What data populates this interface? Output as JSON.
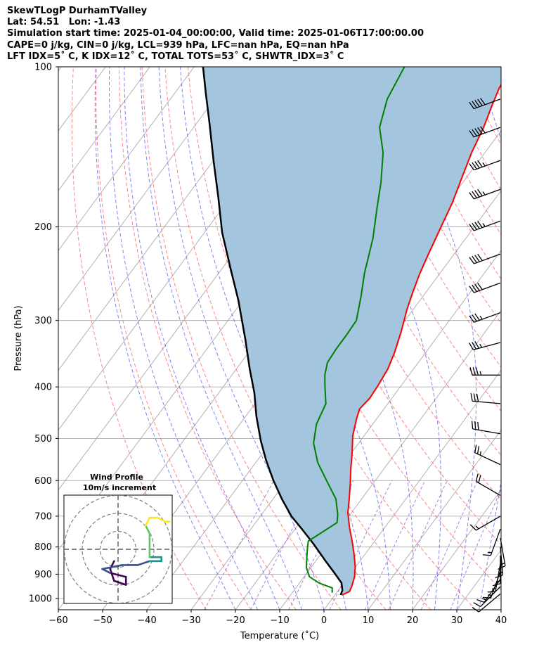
{
  "header": {
    "line1": "SkewTLogP DurhamTValley",
    "line2": "Lat: 54.51   Lon: -1.43",
    "line3": "Simulation start time: 2025-01-04_00:00:00, Valid time: 2025-01-06T17:00:00.00",
    "line4": "CAPE=0 j/kg, CIN=0 j/kg, LCL=939 hPa, LFC=nan hPa, EQ=nan hPa",
    "line5": "LFT IDX=5˚ C, K IDX=12˚ C, TOTAL TOTS=53˚ C, SHWTR_IDX=3˚ C"
  },
  "chart_data": {
    "type": "line",
    "title": "SkewTLogP DurhamTValley",
    "xlabel": "Temperature (˚C)",
    "ylabel": "Pressure (hPa)",
    "xlim": [
      -60,
      40
    ],
    "ylim": [
      1050,
      100
    ],
    "x_ticks": [
      "−60",
      "−50",
      "−40",
      "−30",
      "−20",
      "−10",
      "0",
      "10",
      "20",
      "30",
      "40"
    ],
    "y_ticks": [
      "100",
      "200",
      "300",
      "400",
      "500",
      "600",
      "700",
      "800",
      "900",
      "1000"
    ],
    "y_scale": "log",
    "grid": true,
    "colors": {
      "temperature": "#ff0000",
      "dewpoint": "#008000",
      "parcel": "#000000",
      "cape_fill": "#a3c5de",
      "dry_adiabat": "#ff6666",
      "moist_adiabat": "#6666ee",
      "mixing_ratio": "#9a5fd6",
      "isotherm": "#a0a0a0"
    },
    "series": [
      {
        "name": "temperature",
        "points": [
          [
            1.6,
            985
          ],
          [
            2.7,
            970
          ],
          [
            2.4,
            950
          ],
          [
            1.4,
            910
          ],
          [
            -0.2,
            870
          ],
          [
            -2.5,
            825
          ],
          [
            -5.1,
            780
          ],
          [
            -8.0,
            735
          ],
          [
            -10.8,
            690
          ],
          [
            -12.8,
            650
          ],
          [
            -15.0,
            610
          ],
          [
            -17.5,
            570
          ],
          [
            -20.0,
            530
          ],
          [
            -22.5,
            495
          ],
          [
            -24.5,
            460
          ],
          [
            -25.5,
            440
          ],
          [
            -25.0,
            420
          ],
          [
            -25.2,
            400
          ],
          [
            -25.8,
            370
          ],
          [
            -27.0,
            345
          ],
          [
            -29.0,
            315
          ],
          [
            -31.5,
            285
          ],
          [
            -33.0,
            265
          ],
          [
            -34.5,
            245
          ],
          [
            -35.8,
            225
          ],
          [
            -37.5,
            200
          ],
          [
            -39.0,
            180
          ],
          [
            -41.2,
            160
          ],
          [
            -43.0,
            145
          ],
          [
            -44.5,
            130
          ],
          [
            -46.0,
            120
          ],
          [
            -47.5,
            110
          ],
          [
            -48.5,
            100
          ]
        ]
      },
      {
        "name": "dewpoint",
        "points": [
          [
            -1.0,
            975
          ],
          [
            -1.8,
            955
          ],
          [
            -5.6,
            935
          ],
          [
            -8.8,
            910
          ],
          [
            -11.0,
            875
          ],
          [
            -12.5,
            840
          ],
          [
            -14.2,
            800
          ],
          [
            -15.0,
            780
          ],
          [
            -11.6,
            720
          ],
          [
            -12.8,
            695
          ],
          [
            -15.8,
            650
          ],
          [
            -21.0,
            600
          ],
          [
            -26.0,
            555
          ],
          [
            -30.2,
            510
          ],
          [
            -32.7,
            470
          ],
          [
            -34.0,
            430
          ],
          [
            -37.0,
            400
          ],
          [
            -39.0,
            380
          ],
          [
            -40.5,
            360
          ],
          [
            -40.8,
            340
          ],
          [
            -40.8,
            320
          ],
          [
            -41.0,
            300
          ],
          [
            -44.0,
            270
          ],
          [
            -47.0,
            245
          ],
          [
            -51.0,
            210
          ],
          [
            -55.0,
            185
          ],
          [
            -58.5,
            165
          ],
          [
            -63.0,
            145
          ],
          [
            -68.0,
            130
          ],
          [
            -71.0,
            115
          ],
          [
            -72.5,
            100
          ]
        ]
      },
      {
        "name": "parcel",
        "points": [
          [
            1.3,
            985
          ],
          [
            0.9,
            965
          ],
          [
            -0.5,
            935
          ],
          [
            -3.8,
            895
          ],
          [
            -7.8,
            850
          ],
          [
            -13.3,
            790
          ],
          [
            -18.5,
            740
          ],
          [
            -23.0,
            700
          ],
          [
            -28.0,
            650
          ],
          [
            -33.0,
            600
          ],
          [
            -38.0,
            550
          ],
          [
            -42.5,
            505
          ],
          [
            -47.5,
            455
          ],
          [
            -52.0,
            410
          ],
          [
            -57.0,
            370
          ],
          [
            -63.0,
            325
          ],
          [
            -71.0,
            275
          ],
          [
            -78.0,
            240
          ],
          [
            -86.0,
            205
          ],
          [
            -93.0,
            175
          ],
          [
            -100.0,
            150
          ],
          [
            -107.0,
            128
          ],
          [
            -113.0,
            112
          ],
          [
            -118.0,
            100
          ]
        ]
      }
    ],
    "inset": {
      "title": "Wind Profile",
      "subtitle": "10m/s increment",
      "rings_ms": [
        10,
        20,
        30
      ],
      "hodograph_uv": [
        [
          -1,
          -3
        ],
        [
          -2,
          -5
        ],
        [
          -1,
          -8
        ],
        [
          2,
          -9
        ],
        [
          2,
          -7
        ],
        [
          -2,
          -6
        ],
        [
          -4,
          -5
        ],
        [
          1,
          -4
        ],
        [
          5,
          -4
        ],
        [
          8,
          -3
        ],
        [
          10,
          -3
        ],
        [
          11,
          -3
        ],
        [
          11,
          -2
        ],
        [
          10,
          -2
        ],
        [
          8,
          -2
        ],
        [
          8,
          0
        ],
        [
          8,
          2
        ],
        [
          8,
          4
        ],
        [
          7,
          6
        ],
        [
          8,
          8
        ],
        [
          10,
          8
        ],
        [
          12,
          7
        ],
        [
          13,
          7
        ]
      ],
      "colormap": [
        "#440154",
        "#3b528b",
        "#21918c",
        "#5ec962",
        "#fde725"
      ]
    },
    "wind_barbs": [
      {
        "p": 980,
        "speed_kt": 10,
        "dir_deg": 230
      },
      {
        "p": 950,
        "speed_kt": 10,
        "dir_deg": 225
      },
      {
        "p": 920,
        "speed_kt": 15,
        "dir_deg": 215
      },
      {
        "p": 890,
        "speed_kt": 15,
        "dir_deg": 200
      },
      {
        "p": 860,
        "speed_kt": 15,
        "dir_deg": 190
      },
      {
        "p": 830,
        "speed_kt": 15,
        "dir_deg": 180
      },
      {
        "p": 800,
        "speed_kt": 15,
        "dir_deg": 175
      },
      {
        "p": 770,
        "speed_kt": 15,
        "dir_deg": 170
      },
      {
        "p": 740,
        "speed_kt": 15,
        "dir_deg": 200
      },
      {
        "p": 700,
        "speed_kt": 15,
        "dir_deg": 240
      },
      {
        "p": 640,
        "speed_kt": 20,
        "dir_deg": 300
      },
      {
        "p": 560,
        "speed_kt": 25,
        "dir_deg": 295
      },
      {
        "p": 490,
        "speed_kt": 30,
        "dir_deg": 280
      },
      {
        "p": 430,
        "speed_kt": 30,
        "dir_deg": 275
      },
      {
        "p": 380,
        "speed_kt": 35,
        "dir_deg": 270
      },
      {
        "p": 330,
        "speed_kt": 35,
        "dir_deg": 255
      },
      {
        "p": 290,
        "speed_kt": 35,
        "dir_deg": 250
      },
      {
        "p": 255,
        "speed_kt": 40,
        "dir_deg": 250
      },
      {
        "p": 225,
        "speed_kt": 40,
        "dir_deg": 250
      },
      {
        "p": 195,
        "speed_kt": 45,
        "dir_deg": 250
      },
      {
        "p": 170,
        "speed_kt": 45,
        "dir_deg": 250
      },
      {
        "p": 150,
        "speed_kt": 45,
        "dir_deg": 250
      },
      {
        "p": 130,
        "speed_kt": 50,
        "dir_deg": 250
      },
      {
        "p": 115,
        "speed_kt": 50,
        "dir_deg": 250
      }
    ]
  }
}
